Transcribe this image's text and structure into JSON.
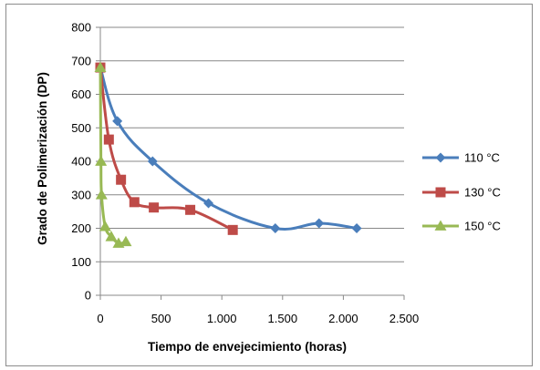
{
  "chart_data": {
    "type": "line",
    "title": "",
    "xlabel": "Tiempo de envejecimiento (horas)",
    "ylabel": "Grado de Polimerización (DP)",
    "xlim": [
      0,
      2500
    ],
    "ylim": [
      0,
      800
    ],
    "x_ticks": [
      0,
      500,
      1000,
      1500,
      2000,
      2500
    ],
    "x_tick_labels": [
      "0",
      "500",
      "1.000",
      "1.500",
      "2.000",
      "2.500"
    ],
    "y_ticks": [
      0,
      100,
      200,
      300,
      400,
      500,
      600,
      700,
      800
    ],
    "y_tick_labels": [
      "0",
      "100",
      "200",
      "300",
      "400",
      "500",
      "600",
      "700",
      "800"
    ],
    "grid": "horizontal",
    "legend_position": "right",
    "series": [
      {
        "name": "110 °C",
        "color": "#4a7ebb",
        "marker": "diamond",
        "x": [
          0,
          140,
          430,
          890,
          1440,
          1800,
          2110
        ],
        "y": [
          680,
          520,
          400,
          275,
          200,
          215,
          200
        ]
      },
      {
        "name": "130 °C",
        "color": "#be4b48",
        "marker": "square",
        "x": [
          0,
          70,
          170,
          280,
          440,
          740,
          1090
        ],
        "y": [
          680,
          465,
          345,
          278,
          262,
          255,
          195
        ]
      },
      {
        "name": "150 °C",
        "color": "#98b954",
        "marker": "triangle",
        "x": [
          0,
          5,
          10,
          40,
          90,
          150,
          210
        ],
        "y": [
          680,
          400,
          300,
          205,
          175,
          155,
          160
        ]
      }
    ]
  }
}
